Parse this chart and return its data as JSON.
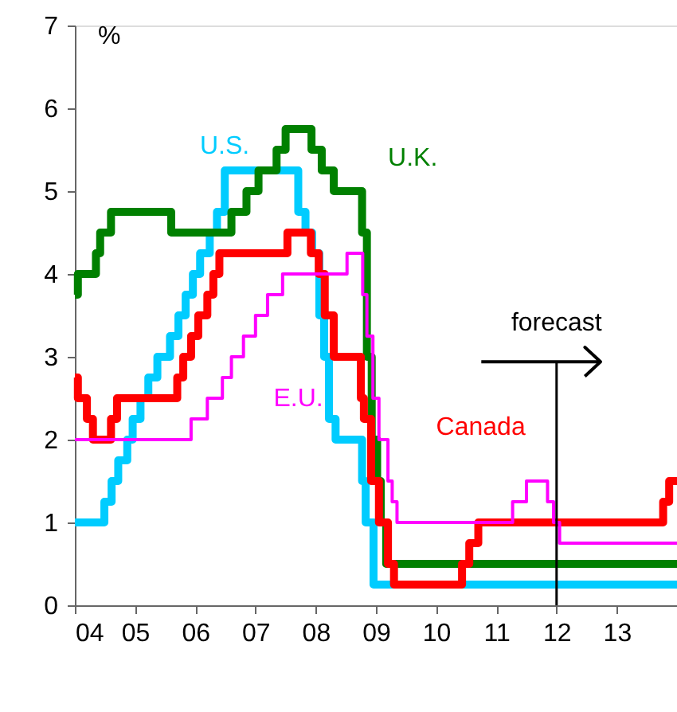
{
  "chart_data": {
    "type": "step",
    "ylabel": "%",
    "xlim": [
      2004,
      2014
    ],
    "ylim": [
      0,
      7
    ],
    "yticks": [
      0,
      1,
      2,
      3,
      4,
      5,
      6,
      7
    ],
    "xticks": [
      {
        "value": 2004,
        "label": "04"
      },
      {
        "value": 2005,
        "label": "05"
      },
      {
        "value": 2006,
        "label": "06"
      },
      {
        "value": 2007,
        "label": "07"
      },
      {
        "value": 2008,
        "label": "08"
      },
      {
        "value": 2009,
        "label": "09"
      },
      {
        "value": 2010,
        "label": "10"
      },
      {
        "value": 2011,
        "label": "11"
      },
      {
        "value": 2012,
        "label": "12"
      },
      {
        "value": 2013,
        "label": "13"
      }
    ],
    "grid": false,
    "line_style": "solid",
    "marker": "none",
    "series": [
      {
        "name": "U.S.",
        "color": "#00ccff",
        "x": [
          2004.0,
          2004.49,
          2004.61,
          2004.72,
          2004.87,
          2004.96,
          2005.09,
          2005.22,
          2005.37,
          2005.58,
          2005.72,
          2005.84,
          2005.96,
          2006.08,
          2006.24,
          2006.36,
          2006.49,
          2007.71,
          2007.83,
          2007.94,
          2008.06,
          2008.14,
          2008.22,
          2008.33,
          2008.77,
          2008.83,
          2008.96,
          2014.0
        ],
        "values": [
          1.0,
          1.25,
          1.5,
          1.75,
          2.0,
          2.25,
          2.5,
          2.75,
          3.0,
          3.25,
          3.5,
          3.75,
          4.0,
          4.25,
          4.5,
          4.75,
          5.25,
          4.75,
          4.5,
          4.25,
          3.5,
          3.0,
          2.25,
          2.0,
          1.5,
          1.0,
          0.25,
          0.25
        ]
      },
      {
        "name": "U.K.",
        "color": "#008000",
        "x": [
          2004.0,
          2004.05,
          2004.35,
          2004.42,
          2004.6,
          2005.6,
          2006.6,
          2006.85,
          2007.05,
          2007.35,
          2007.5,
          2007.93,
          2008.1,
          2008.3,
          2008.77,
          2008.85,
          2008.93,
          2009.02,
          2009.08,
          2009.17,
          2014.0
        ],
        "values": [
          3.75,
          4.0,
          4.25,
          4.5,
          4.75,
          4.5,
          4.75,
          5.0,
          5.25,
          5.5,
          5.75,
          5.5,
          5.25,
          5.0,
          4.5,
          3.0,
          2.0,
          1.5,
          1.0,
          0.5,
          0.5
        ]
      },
      {
        "name": "Canada",
        "color": "#ff0000",
        "x": [
          2004.0,
          2004.05,
          2004.2,
          2004.3,
          2004.6,
          2004.7,
          2005.7,
          2005.8,
          2005.93,
          2006.05,
          2006.2,
          2006.3,
          2006.4,
          2007.53,
          2007.92,
          2008.05,
          2008.15,
          2008.3,
          2008.75,
          2008.8,
          2008.92,
          2009.05,
          2009.2,
          2009.3,
          2010.43,
          2010.55,
          2010.7,
          2013.77,
          2013.87,
          2014.0
        ],
        "values": [
          2.75,
          2.5,
          2.25,
          2.0,
          2.25,
          2.5,
          2.75,
          3.0,
          3.25,
          3.5,
          3.75,
          4.0,
          4.25,
          4.5,
          4.25,
          4.0,
          3.5,
          3.0,
          2.5,
          2.25,
          1.5,
          1.0,
          0.5,
          0.25,
          0.5,
          0.75,
          1.0,
          1.25,
          1.5,
          1.5
        ]
      },
      {
        "name": "E.U.",
        "color": "#ff00ff",
        "x": [
          2004.0,
          2005.93,
          2006.2,
          2006.45,
          2006.6,
          2006.8,
          2007.0,
          2007.2,
          2007.45,
          2008.52,
          2008.78,
          2008.85,
          2008.95,
          2009.05,
          2009.2,
          2009.27,
          2009.35,
          2011.27,
          2011.5,
          2011.85,
          2011.95,
          2012.05,
          2014.0
        ],
        "values": [
          2.0,
          2.25,
          2.5,
          2.75,
          3.0,
          3.25,
          3.5,
          3.75,
          4.0,
          4.25,
          3.75,
          3.25,
          2.5,
          2.0,
          1.5,
          1.25,
          1.0,
          1.25,
          1.5,
          1.25,
          1.0,
          0.75,
          0.75
        ]
      }
    ],
    "ref_lines": [
      {
        "axis": "x",
        "value": 2012,
        "color": "#000000",
        "line_style": "solid"
      }
    ],
    "annotations": [
      "forecast"
    ]
  }
}
